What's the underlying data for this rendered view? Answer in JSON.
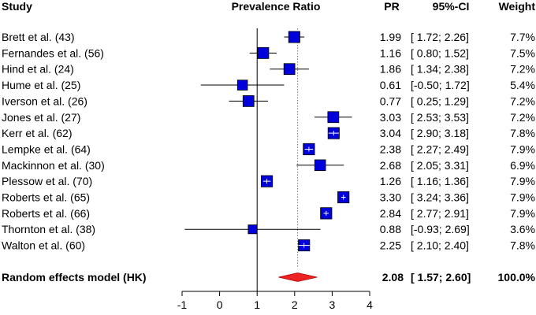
{
  "chart_data": {
    "type": "forest",
    "headers": {
      "study": "Study",
      "axis_title": "Prevalence Ratio",
      "pr": "PR",
      "ci": "95%-CI",
      "weight": "Weight"
    },
    "xlim": [
      -1,
      4
    ],
    "xticks": [
      "-1",
      "0",
      "1",
      "2",
      "3",
      "4"
    ],
    "null_line": 1,
    "pooled_reference_line": 2.08,
    "studies": [
      {
        "label": "Brett et al. (43)",
        "pr": 1.99,
        "lower": 1.72,
        "upper": 2.26,
        "weight": 7.7,
        "pr_text": "1.99",
        "ci_text": "[ 1.72; 2.26]",
        "weight_text": "7.7%"
      },
      {
        "label": "Fernandes et al. (56)",
        "pr": 1.16,
        "lower": 0.8,
        "upper": 1.52,
        "weight": 7.5,
        "pr_text": "1.16",
        "ci_text": "[ 0.80; 1.52]",
        "weight_text": "7.5%"
      },
      {
        "label": "Hind et al. (24)",
        "pr": 1.86,
        "lower": 1.34,
        "upper": 2.38,
        "weight": 7.2,
        "pr_text": "1.86",
        "ci_text": "[ 1.34; 2.38]",
        "weight_text": "7.2%"
      },
      {
        "label": "Hume et al. (25)",
        "pr": 0.61,
        "lower": -0.5,
        "upper": 1.72,
        "weight": 5.4,
        "pr_text": "0.61",
        "ci_text": "[-0.50; 1.72]",
        "weight_text": "5.4%"
      },
      {
        "label": "Iverson et al. (26)",
        "pr": 0.77,
        "lower": 0.25,
        "upper": 1.29,
        "weight": 7.2,
        "pr_text": "0.77",
        "ci_text": "[ 0.25; 1.29]",
        "weight_text": "7.2%"
      },
      {
        "label": "Jones et al. (27)",
        "pr": 3.03,
        "lower": 2.53,
        "upper": 3.53,
        "weight": 7.2,
        "pr_text": "3.03",
        "ci_text": "[ 2.53; 3.53]",
        "weight_text": "7.2%"
      },
      {
        "label": "Kerr et al. (62)",
        "pr": 3.04,
        "lower": 2.9,
        "upper": 3.18,
        "weight": 7.8,
        "pr_text": "3.04",
        "ci_text": "[ 2.90; 3.18]",
        "weight_text": "7.8%"
      },
      {
        "label": "Lempke et al. (64)",
        "pr": 2.38,
        "lower": 2.27,
        "upper": 2.49,
        "weight": 7.9,
        "pr_text": "2.38",
        "ci_text": "[ 2.27; 2.49]",
        "weight_text": "7.9%"
      },
      {
        "label": "Mackinnon et al. (30)",
        "pr": 2.68,
        "lower": 2.05,
        "upper": 3.31,
        "weight": 6.9,
        "pr_text": "2.68",
        "ci_text": "[ 2.05; 3.31]",
        "weight_text": "6.9%"
      },
      {
        "label": "Plessow et al. (70)",
        "pr": 1.26,
        "lower": 1.16,
        "upper": 1.36,
        "weight": 7.9,
        "pr_text": "1.26",
        "ci_text": "[ 1.16; 1.36]",
        "weight_text": "7.9%"
      },
      {
        "label": "Roberts et al. (65)",
        "pr": 3.3,
        "lower": 3.24,
        "upper": 3.36,
        "weight": 7.9,
        "pr_text": "3.30",
        "ci_text": "[ 3.24; 3.36]",
        "weight_text": "7.9%"
      },
      {
        "label": "Roberts et al. (66)",
        "pr": 2.84,
        "lower": 2.77,
        "upper": 2.91,
        "weight": 7.9,
        "pr_text": "2.84",
        "ci_text": "[ 2.77; 2.91]",
        "weight_text": "7.9%"
      },
      {
        "label": "Thornton et al. (38)",
        "pr": 0.88,
        "lower": -0.93,
        "upper": 2.69,
        "weight": 3.6,
        "pr_text": "0.88",
        "ci_text": "[-0.93; 2.69]",
        "weight_text": "3.6%"
      },
      {
        "label": "Walton et al. (60)",
        "pr": 2.25,
        "lower": 2.1,
        "upper": 2.4,
        "weight": 7.8,
        "pr_text": "2.25",
        "ci_text": "[ 2.10; 2.40]",
        "weight_text": "7.8%"
      }
    ],
    "summary": {
      "label": "Random effects model (HK)",
      "pr": 2.08,
      "lower": 1.57,
      "upper": 2.6,
      "weight": 100.0,
      "pr_text": "2.08",
      "ci_text": "[ 1.57; 2.60]",
      "weight_text": "100.0%"
    },
    "colors": {
      "square": "#0000dd",
      "square_border": "#000000",
      "diamond": "#ee2222",
      "line": "#000000",
      "reference": "#777777"
    }
  }
}
